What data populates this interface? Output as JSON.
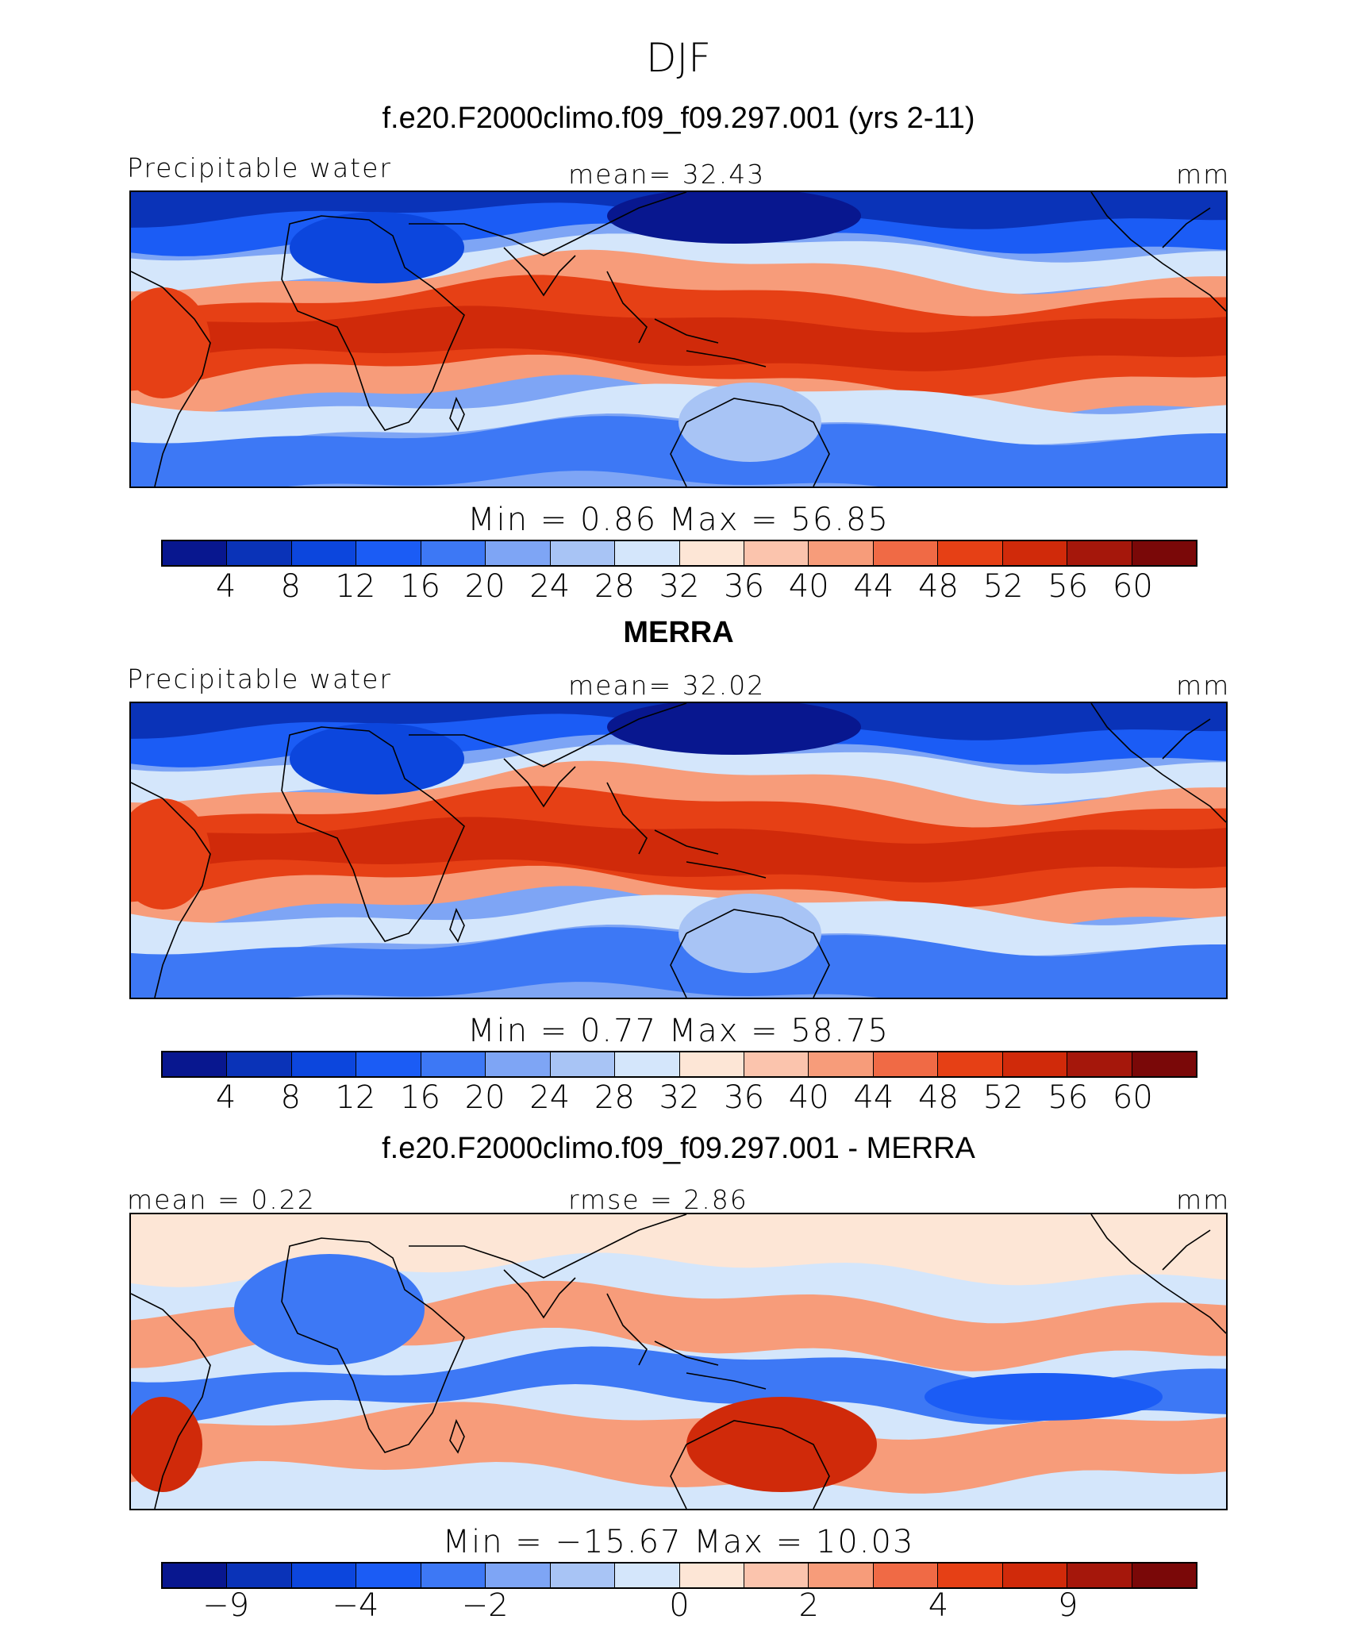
{
  "figure": {
    "season": "DJF"
  },
  "colors": {
    "diverging": [
      "#08178f",
      "#0a33b8",
      "#0c46dd",
      "#1b5cf5",
      "#3d78f5",
      "#7ea5f5",
      "#a8c4f5",
      "#d4e6fb",
      "#fde6d6",
      "#fbc4ad",
      "#f79c7a",
      "#f06a45",
      "#e64015",
      "#d02a0a",
      "#a5170b",
      "#7a0808"
    ]
  },
  "panels": [
    {
      "title": "f.e20.F2000climo.f09_f09.297.001 (yrs 2-11)",
      "left_label": "Precipitable water",
      "center_label": "mean=   32.43",
      "right_label": "mm",
      "stats": "Min =    0.86  Max =   56.85",
      "ticks": [
        "4",
        "8",
        "12",
        "16",
        "20",
        "24",
        "28",
        "32",
        "36",
        "40",
        "44",
        "48",
        "52",
        "56",
        "60"
      ]
    },
    {
      "title": "MERRA",
      "left_label": "Precipitable water",
      "center_label": "mean=   32.02",
      "right_label": "mm",
      "stats": "Min =    0.77  Max =   58.75",
      "ticks": [
        "4",
        "8",
        "12",
        "16",
        "20",
        "24",
        "28",
        "32",
        "36",
        "40",
        "44",
        "48",
        "52",
        "56",
        "60"
      ]
    },
    {
      "title": "f.e20.F2000climo.f09_f09.297.001 - MERRA",
      "left_label": "mean =   0.22",
      "center_label": "rmse =   2.86",
      "right_label": "mm",
      "stats": "Min = −15.67  Max =   10.03",
      "ticks": [
        "−9",
        "−4",
        "−2",
        "0",
        "2",
        "4",
        "9"
      ]
    }
  ]
}
